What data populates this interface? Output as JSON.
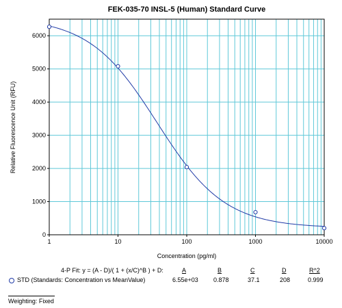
{
  "chart_data": {
    "type": "scatter",
    "title": "FEK-035-70 INSL-5 (Human)  Standard Curve",
    "xlabel": "Concentration (pg/ml)",
    "ylabel": "Relative Fluorescence Unit (RFU)",
    "x_scale": "log",
    "xlim": [
      1,
      10000
    ],
    "ylim": [
      0,
      6500
    ],
    "x_ticks": [
      "1",
      "10",
      "100",
      "1000",
      "10000"
    ],
    "y_ticks": [
      "0",
      "1000",
      "2000",
      "3000",
      "4000",
      "5000",
      "6000"
    ],
    "grid": true,
    "series": [
      {
        "name": "STD (Standards: Concentration vs MeanValue)",
        "x": [
          1,
          10,
          100,
          1000,
          10000
        ],
        "y": [
          6270,
          5080,
          2040,
          680,
          200
        ]
      }
    ],
    "fit": {
      "model": "4-P Fit: y = (A - D)/( 1 + (x/C)^B ) + D:",
      "param_labels": [
        "A",
        "B",
        "C",
        "D",
        "R^2"
      ],
      "param_values": [
        "6.55e+03",
        "0.878",
        "37.1",
        "208",
        "0.999"
      ],
      "A": 6550,
      "B": 0.878,
      "C": 37.1,
      "D": 208
    },
    "colors": {
      "curve": "#1f3aa6",
      "grid": "#5fc8d8",
      "marker": "#1f3aa6"
    }
  },
  "footer": {
    "weighting": "Weighting: Fixed"
  }
}
